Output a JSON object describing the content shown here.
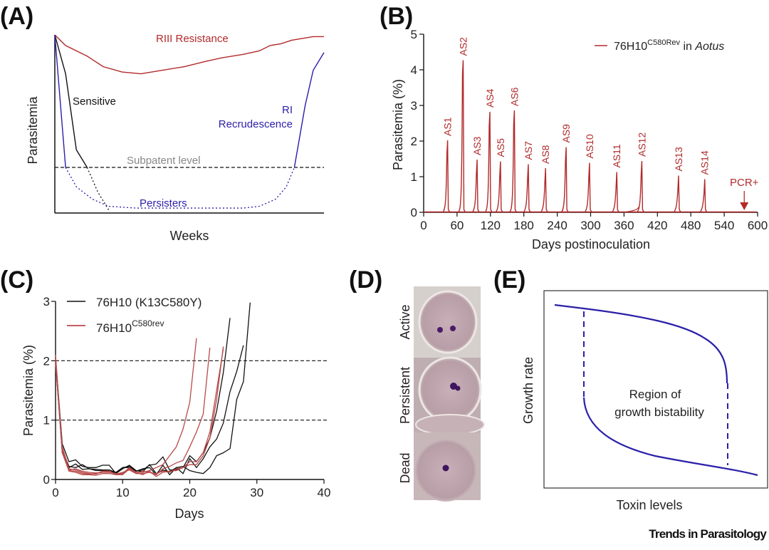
{
  "figure": {
    "footer": "Trends in Parasitology",
    "colors": {
      "red": "#b22a2a",
      "blue": "#2a1fa8",
      "black": "#111111",
      "gray": "#888888"
    }
  },
  "panels": {
    "A": {
      "letter": "(A)"
    },
    "B": {
      "letter": "(B)"
    },
    "C": {
      "letter": "(C)"
    },
    "D": {
      "letter": "(D)"
    },
    "E": {
      "letter": "(E)"
    }
  },
  "chart_data": [
    {
      "id": "A",
      "type": "line",
      "title": "",
      "xlabel": "Weeks",
      "ylabel": "Parasitemia",
      "xlim": [
        0,
        100
      ],
      "ylim": [
        0,
        100
      ],
      "grid": false,
      "reference_lines": [
        {
          "y": 25,
          "label": "Subpatent level",
          "style": "dashed"
        }
      ],
      "annotations": [
        {
          "text": "RIII Resistance",
          "color": "red"
        },
        {
          "text": "Sensitive",
          "color": "black"
        },
        {
          "text": "RI",
          "color": "blue"
        },
        {
          "text": "Recrudescence",
          "color": "blue"
        },
        {
          "text": "Persisters",
          "color": "blue"
        }
      ],
      "series": [
        {
          "name": "RIII Resistance",
          "color": "red",
          "style": "solid",
          "x": [
            0,
            4,
            12,
            18,
            25,
            32,
            40,
            48,
            56,
            62,
            70,
            76,
            80,
            84,
            88,
            92,
            96,
            100
          ],
          "y": [
            100,
            94,
            88,
            82,
            79,
            78,
            80,
            82,
            85,
            87,
            89,
            91,
            94,
            95,
            97,
            98,
            99,
            99
          ]
        },
        {
          "name": "Sensitive",
          "color": "black",
          "style": "solid",
          "x": [
            0,
            4,
            8,
            12
          ],
          "y": [
            100,
            78,
            35,
            25
          ]
        },
        {
          "name": "Sensitive (subpatent)",
          "color": "black",
          "style": "dotted",
          "x": [
            12,
            16,
            20
          ],
          "y": [
            25,
            11,
            1
          ]
        },
        {
          "name": "RI drop",
          "color": "blue",
          "style": "solid",
          "x": [
            0,
            4
          ],
          "y": [
            100,
            25
          ]
        },
        {
          "name": "Persisters",
          "color": "blue",
          "style": "dotted",
          "x": [
            4,
            8,
            14,
            20,
            30,
            50,
            70,
            76,
            82,
            86,
            89
          ],
          "y": [
            25,
            14,
            7,
            3,
            2,
            2,
            2,
            3,
            7,
            14,
            25
          ]
        },
        {
          "name": "RI Recrudescence",
          "color": "blue",
          "style": "solid",
          "x": [
            89,
            93,
            96,
            100
          ],
          "y": [
            25,
            60,
            80,
            90
          ]
        }
      ]
    },
    {
      "id": "B",
      "type": "line",
      "title": "",
      "xlabel": "Days postinoculation",
      "ylabel": "Parasitemia (%)",
      "xlim": [
        0,
        600
      ],
      "ylim": [
        0,
        5
      ],
      "xticks": [
        0,
        60,
        120,
        180,
        240,
        300,
        360,
        420,
        480,
        540,
        600
      ],
      "yticks": [
        0,
        1,
        2,
        3,
        4,
        5
      ],
      "grid": false,
      "legend": {
        "position": "top-right",
        "entries": [
          {
            "label": "76H10",
            "sup": "C580Rev",
            "suffix": " in ",
            "italic": "Aotus",
            "color": "red"
          }
        ]
      },
      "peaks": [
        {
          "label": "AS1",
          "day": 43,
          "value": 2.02
        },
        {
          "label": "AS2",
          "day": 71,
          "value": 4.27
        },
        {
          "label": "AS3",
          "day": 96,
          "value": 1.48
        },
        {
          "label": "AS4",
          "day": 119,
          "value": 2.82
        },
        {
          "label": "AS5",
          "day": 138,
          "value": 1.43
        },
        {
          "label": "AS6",
          "day": 163,
          "value": 2.86
        },
        {
          "label": "AS7",
          "day": 188,
          "value": 1.35
        },
        {
          "label": "AS8",
          "day": 219,
          "value": 1.24
        },
        {
          "label": "AS9",
          "day": 256,
          "value": 1.83
        },
        {
          "label": "AS10",
          "day": 298,
          "value": 1.39
        },
        {
          "label": "AS11",
          "day": 347,
          "value": 1.13
        },
        {
          "label": "AS12",
          "day": 392,
          "value": 1.44
        },
        {
          "label": "AS13",
          "day": 458,
          "value": 1.03
        },
        {
          "label": "AS14",
          "day": 505,
          "value": 0.93
        }
      ],
      "marker": {
        "label": "PCR+",
        "day": 576,
        "type": "arrow-down"
      }
    },
    {
      "id": "C",
      "type": "line",
      "title": "",
      "xlabel": "Days",
      "ylabel": "Parasitemia (%)",
      "xlim": [
        0,
        40
      ],
      "ylim": [
        0,
        3
      ],
      "xticks": [
        0,
        10,
        20,
        30,
        40
      ],
      "yticks": [
        0,
        1,
        2,
        3
      ],
      "grid": false,
      "reference_lines": [
        {
          "y": 2,
          "style": "dashed"
        },
        {
          "y": 1,
          "style": "dashed"
        }
      ],
      "legend": {
        "position": "top-left",
        "entries": [
          {
            "label": "76H10 (K13C580Y)",
            "color": "black"
          },
          {
            "label": "76H10",
            "sup": "C580rev",
            "color": "red"
          }
        ]
      },
      "series": [
        {
          "name": "76H10 (K13C580Y) #1",
          "color": "black",
          "x": [
            0,
            1,
            2,
            3,
            4,
            5,
            6,
            7,
            8,
            9,
            10,
            11,
            12,
            13,
            14,
            15,
            16,
            17,
            18,
            19,
            20,
            21,
            22,
            23,
            24,
            25,
            26
          ],
          "y": [
            2.05,
            0.6,
            0.3,
            0.33,
            0.22,
            0.2,
            0.2,
            0.24,
            0.24,
            0.1,
            0.2,
            0.22,
            0.14,
            0.16,
            0.24,
            0.26,
            0.38,
            0.16,
            0.16,
            0.2,
            0.4,
            0.3,
            0.45,
            0.7,
            1.15,
            1.8,
            2.72
          ]
        },
        {
          "name": "76H10 (K13C580Y) #2",
          "color": "black",
          "x": [
            0,
            1,
            2,
            3,
            4,
            5,
            6,
            7,
            8,
            9,
            10,
            11,
            12,
            13,
            14,
            15,
            16,
            17,
            18,
            19,
            20,
            21,
            22,
            23,
            24,
            25,
            26,
            27,
            28
          ],
          "y": [
            2.0,
            0.5,
            0.22,
            0.2,
            0.25,
            0.18,
            0.17,
            0.16,
            0.16,
            0.12,
            0.2,
            0.2,
            0.14,
            0.18,
            0.2,
            0.08,
            0.24,
            0.08,
            0.2,
            0.1,
            0.35,
            0.2,
            0.35,
            0.55,
            0.68,
            0.95,
            1.48,
            1.82,
            2.26
          ]
        },
        {
          "name": "76H10 (K13C580Y) #3",
          "color": "black",
          "x": [
            0,
            1,
            2,
            3,
            4,
            5,
            6,
            7,
            8,
            9,
            10,
            11,
            12,
            13,
            14,
            15,
            16,
            17,
            18,
            19,
            20,
            21,
            22,
            23,
            24,
            25,
            26,
            27,
            28,
            29
          ],
          "y": [
            2.0,
            0.45,
            0.2,
            0.26,
            0.17,
            0.18,
            0.15,
            0.15,
            0.16,
            0.1,
            0.18,
            0.24,
            0.15,
            0.13,
            0.25,
            0.1,
            0.16,
            0.13,
            0.2,
            0.22,
            0.15,
            0.12,
            0.1,
            0.2,
            0.4,
            0.45,
            0.52,
            1.35,
            1.65,
            2.98
          ]
        },
        {
          "name": "76H10C580rev #1",
          "color": "red",
          "x": [
            0,
            1,
            2,
            3,
            4,
            5,
            6,
            7,
            8,
            9,
            10,
            11,
            12,
            13,
            14,
            15,
            16,
            17,
            18,
            19,
            20,
            21
          ],
          "y": [
            2.1,
            0.5,
            0.15,
            0.14,
            0.1,
            0.09,
            0.1,
            0.12,
            0.12,
            0.1,
            0.1,
            0.18,
            0.12,
            0.12,
            0.15,
            0.2,
            0.25,
            0.4,
            0.55,
            0.85,
            1.3,
            2.38
          ]
        },
        {
          "name": "76H10C580rev #2",
          "color": "red",
          "x": [
            0,
            1,
            2,
            3,
            4,
            5,
            6,
            7,
            8,
            9,
            10,
            11,
            12,
            13,
            14,
            15,
            16,
            17,
            18,
            19,
            20,
            21,
            22,
            23
          ],
          "y": [
            2.05,
            0.45,
            0.14,
            0.12,
            0.08,
            0.08,
            0.07,
            0.1,
            0.1,
            0.08,
            0.08,
            0.18,
            0.1,
            0.1,
            0.12,
            0.08,
            0.18,
            0.22,
            0.28,
            0.32,
            0.55,
            0.8,
            1.1,
            2.22
          ]
        },
        {
          "name": "76H10C580rev #3",
          "color": "red",
          "x": [
            0,
            1,
            2,
            3,
            4,
            5,
            6,
            7,
            8,
            9,
            10,
            11,
            12,
            13,
            14,
            15,
            16,
            17,
            18,
            19,
            20,
            21,
            22,
            23,
            24,
            25
          ],
          "y": [
            2.0,
            0.55,
            0.18,
            0.16,
            0.12,
            0.1,
            0.09,
            0.14,
            0.14,
            0.08,
            0.1,
            0.2,
            0.12,
            0.08,
            0.14,
            0.05,
            0.12,
            0.14,
            0.15,
            0.2,
            0.25,
            0.25,
            0.4,
            0.7,
            1.35,
            2.24
          ]
        },
        {
          "name": "76H10C580rev #4",
          "color": "red",
          "x": [
            0,
            1,
            2,
            3,
            4,
            5,
            6,
            7,
            8,
            9,
            10,
            11,
            12,
            13,
            14,
            15,
            16,
            17,
            18,
            19,
            20,
            21,
            22,
            23,
            24,
            25
          ],
          "y": [
            1.95,
            0.5,
            0.16,
            0.18,
            0.14,
            0.12,
            0.11,
            0.12,
            0.13,
            0.09,
            0.12,
            0.16,
            0.1,
            0.14,
            0.12,
            0.1,
            0.14,
            0.12,
            0.18,
            0.2,
            0.3,
            0.3,
            0.45,
            0.8,
            1.5,
            2.2
          ]
        }
      ]
    },
    {
      "id": "E",
      "type": "line",
      "title": "",
      "xlabel": "Toxin levels",
      "ylabel": "Growth rate",
      "annotation": [
        "Region of",
        "growth bistability"
      ],
      "grid": false,
      "series": [
        {
          "name": "upper branch",
          "style": "solid",
          "color": "blue",
          "x": [
            0,
            0.2,
            0.4,
            0.6,
            0.75,
            0.82,
            0.85
          ],
          "y": [
            0.95,
            0.9,
            0.84,
            0.75,
            0.63,
            0.52,
            0.4
          ]
        },
        {
          "name": "lower branch",
          "style": "solid",
          "color": "blue",
          "x": [
            0.15,
            0.17,
            0.25,
            0.4,
            0.6,
            0.8,
            1.0
          ],
          "y": [
            0.45,
            0.3,
            0.2,
            0.13,
            0.08,
            0.05,
            0.02
          ]
        },
        {
          "name": "left fold",
          "style": "dashed",
          "color": "blue",
          "x": [
            0.15,
            0.15
          ],
          "y": [
            0.9,
            0.45
          ]
        },
        {
          "name": "right fold",
          "style": "dashed",
          "color": "blue",
          "x": [
            0.85,
            0.85
          ],
          "y": [
            0.4,
            0.05
          ]
        }
      ]
    }
  ],
  "panel_d": {
    "image_description": "micrographs of infected red blood cells",
    "rows": [
      {
        "label": "Active",
        "dots": 2
      },
      {
        "label": "Persistent",
        "dots": 1
      },
      {
        "label": "Dead",
        "dots": 1
      }
    ]
  }
}
